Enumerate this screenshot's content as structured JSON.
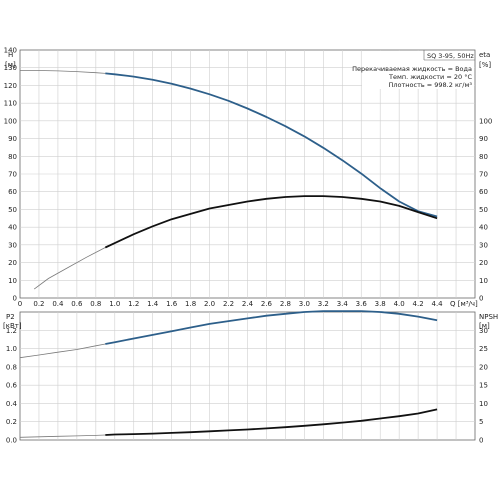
{
  "chart_data": [
    {
      "type": "line",
      "title": "SQ 3-95, 50Hz",
      "info_lines": [
        "Перекачиваемая жидкость = Вода",
        "Темп. жидкости = 20 °C",
        "Плотность = 998.2 кг/м³"
      ],
      "xlabel": "Q [м³/ч]",
      "ylabel_left": "H",
      "ylabel_left_unit": "[м]",
      "ylabel_right": "eta",
      "ylabel_right_unit": "[%]",
      "xlim": [
        0,
        4.8
      ],
      "ylim_left": [
        0,
        140
      ],
      "ylim_right": [
        0,
        140
      ],
      "x_ticks": [
        "0",
        "0.2",
        "0.4",
        "0.6",
        "0.8",
        "1.0",
        "1.2",
        "1.4",
        "1.6",
        "1.8",
        "2.0",
        "2.2",
        "2.4",
        "2.6",
        "2.8",
        "3.0",
        "3.2",
        "3.4",
        "3.6",
        "3.8",
        "4.0",
        "4.2",
        "4.4"
      ],
      "y_left_ticks": [
        "0",
        "10",
        "20",
        "30",
        "40",
        "50",
        "60",
        "70",
        "80",
        "90",
        "100",
        "110",
        "120",
        "130",
        "140"
      ],
      "y_right_ticks": [
        "0",
        "10",
        "20",
        "30",
        "40",
        "50",
        "60",
        "70",
        "80",
        "90",
        "100"
      ],
      "grid": true,
      "series": [
        {
          "color": "#2d5f8a",
          "axis": "left",
          "operating_from": 0.9,
          "x": [
            0,
            0.2,
            0.4,
            0.6,
            0.8,
            0.9,
            1.0,
            1.2,
            1.4,
            1.6,
            1.8,
            2.0,
            2.2,
            2.4,
            2.6,
            2.8,
            3.0,
            3.2,
            3.4,
            3.6,
            3.8,
            4.0,
            4.2,
            4.4
          ],
          "y": [
            128.5,
            128.4,
            128.2,
            127.8,
            127.2,
            126.8,
            126.3,
            125.0,
            123.2,
            121.0,
            118.2,
            115.0,
            111.3,
            107.0,
            102.2,
            97.0,
            91.2,
            84.8,
            77.8,
            70.2,
            62.0,
            54.5,
            49.0,
            46.0
          ]
        },
        {
          "color": "#111111",
          "axis": "right",
          "operating_from": 0.9,
          "x": [
            0.15,
            0.3,
            0.5,
            0.7,
            0.9,
            1.0,
            1.2,
            1.4,
            1.6,
            1.8,
            2.0,
            2.2,
            2.4,
            2.6,
            2.8,
            3.0,
            3.2,
            3.4,
            3.6,
            3.8,
            4.0,
            4.2,
            4.4
          ],
          "y": [
            5,
            11,
            17,
            23,
            28.5,
            31,
            36,
            40.5,
            44.5,
            47.5,
            50.5,
            52.5,
            54.5,
            56,
            57,
            57.5,
            57.5,
            57,
            56,
            54.5,
            52,
            48.5,
            45
          ]
        }
      ]
    },
    {
      "type": "line",
      "xlabel": "",
      "ylabel_left": "P2",
      "ylabel_left_unit": "[кВт]",
      "ylabel_right": "NPSH",
      "ylabel_right_unit": "[м]",
      "xlim": [
        0,
        4.8
      ],
      "ylim_left": [
        0,
        1.4
      ],
      "ylim_right": [
        0,
        35
      ],
      "y_left_ticks": [
        "0.0",
        "0.2",
        "0.4",
        "0.6",
        "0.8",
        "1.0",
        "1.2"
      ],
      "y_right_ticks": [
        "0",
        "5",
        "10",
        "15",
        "20",
        "25",
        "30"
      ],
      "grid": true,
      "series": [
        {
          "color": "#2d5f8a",
          "axis": "left",
          "operating_from": 0.9,
          "x": [
            0,
            0.2,
            0.4,
            0.6,
            0.8,
            0.9,
            1.0,
            1.2,
            1.4,
            1.6,
            1.8,
            2.0,
            2.2,
            2.4,
            2.6,
            2.8,
            3.0,
            3.2,
            3.4,
            3.6,
            3.8,
            4.0,
            4.2,
            4.4
          ],
          "y": [
            0.9,
            0.93,
            0.96,
            0.99,
            1.03,
            1.05,
            1.07,
            1.11,
            1.15,
            1.19,
            1.23,
            1.27,
            1.3,
            1.33,
            1.36,
            1.38,
            1.4,
            1.41,
            1.41,
            1.41,
            1.4,
            1.38,
            1.35,
            1.31
          ]
        },
        {
          "color": "#111111",
          "axis": "left",
          "operating_from": 0.9,
          "x": [
            0,
            0.2,
            0.4,
            0.6,
            0.8,
            0.9,
            1.0,
            1.2,
            1.4,
            1.6,
            1.8,
            2.0,
            2.2,
            2.4,
            2.6,
            2.8,
            3.0,
            3.2,
            3.4,
            3.6,
            3.8,
            4.0,
            4.2,
            4.4
          ],
          "y": [
            0.03,
            0.035,
            0.04,
            0.045,
            0.05,
            0.055,
            0.06,
            0.065,
            0.07,
            0.078,
            0.085,
            0.095,
            0.105,
            0.115,
            0.127,
            0.14,
            0.155,
            0.172,
            0.19,
            0.21,
            0.235,
            0.26,
            0.29,
            0.335
          ]
        }
      ]
    }
  ]
}
